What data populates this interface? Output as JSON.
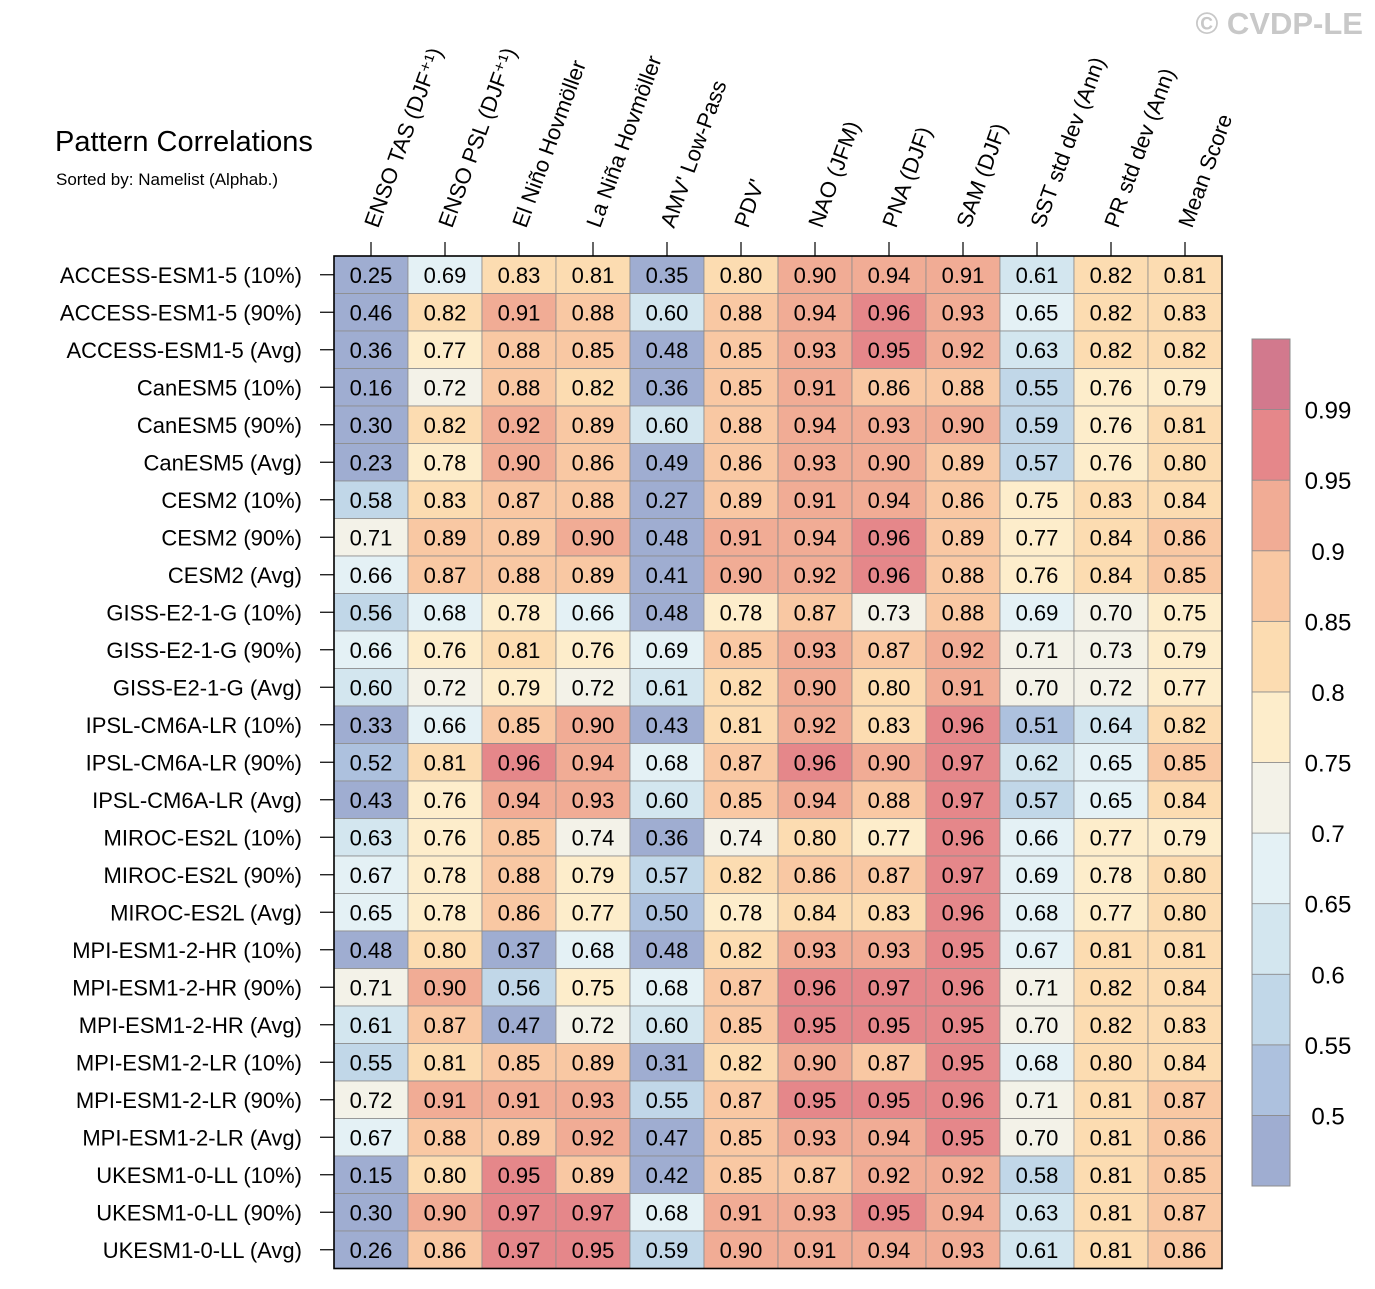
{
  "title": "Pattern Correlations",
  "subtitle": "Sorted by: Namelist (Alphab.)",
  "watermark": "© CVDP-LE",
  "chart_data": {
    "type": "heatmap",
    "columns": [
      "ENSO TAS (DJF⁺¹)",
      "ENSO PSL (DJF⁺¹)",
      "El Niño Hovmöller",
      "La Niña Hovmöller",
      "AMV' Low-Pass",
      "PDV'",
      "NAO (JFM)",
      "PNA (DJF)",
      "SAM (DJF)",
      "SST std dev (Ann)",
      "PR std dev (Ann)",
      "Mean Score"
    ],
    "rows": [
      "ACCESS-ESM1-5 (10%)",
      "ACCESS-ESM1-5 (90%)",
      "ACCESS-ESM1-5 (Avg)",
      "CanESM5 (10%)",
      "CanESM5 (90%)",
      "CanESM5 (Avg)",
      "CESM2 (10%)",
      "CESM2 (90%)",
      "CESM2 (Avg)",
      "GISS-E2-1-G (10%)",
      "GISS-E2-1-G (90%)",
      "GISS-E2-1-G (Avg)",
      "IPSL-CM6A-LR (10%)",
      "IPSL-CM6A-LR (90%)",
      "IPSL-CM6A-LR (Avg)",
      "MIROC-ES2L (10%)",
      "MIROC-ES2L (90%)",
      "MIROC-ES2L (Avg)",
      "MPI-ESM1-2-HR (10%)",
      "MPI-ESM1-2-HR (90%)",
      "MPI-ESM1-2-HR (Avg)",
      "MPI-ESM1-2-LR (10%)",
      "MPI-ESM1-2-LR (90%)",
      "MPI-ESM1-2-LR (Avg)",
      "UKESM1-0-LL (10%)",
      "UKESM1-0-LL (90%)",
      "UKESM1-0-LL (Avg)"
    ],
    "values": [
      [
        "0.25",
        "0.69",
        "0.83",
        "0.81",
        "0.35",
        "0.80",
        "0.90",
        "0.94",
        "0.91",
        "0.61",
        "0.82",
        "0.81"
      ],
      [
        "0.46",
        "0.82",
        "0.91",
        "0.88",
        "0.60",
        "0.88",
        "0.94",
        "0.96",
        "0.93",
        "0.65",
        "0.82",
        "0.83"
      ],
      [
        "0.36",
        "0.77",
        "0.88",
        "0.85",
        "0.48",
        "0.85",
        "0.93",
        "0.95",
        "0.92",
        "0.63",
        "0.82",
        "0.82"
      ],
      [
        "0.16",
        "0.72",
        "0.88",
        "0.82",
        "0.36",
        "0.85",
        "0.91",
        "0.86",
        "0.88",
        "0.55",
        "0.76",
        "0.79"
      ],
      [
        "0.30",
        "0.82",
        "0.92",
        "0.89",
        "0.60",
        "0.88",
        "0.94",
        "0.93",
        "0.90",
        "0.59",
        "0.76",
        "0.81"
      ],
      [
        "0.23",
        "0.78",
        "0.90",
        "0.86",
        "0.49",
        "0.86",
        "0.93",
        "0.90",
        "0.89",
        "0.57",
        "0.76",
        "0.80"
      ],
      [
        "0.58",
        "0.83",
        "0.87",
        "0.88",
        "0.27",
        "0.89",
        "0.91",
        "0.94",
        "0.86",
        "0.75",
        "0.83",
        "0.84"
      ],
      [
        "0.71",
        "0.89",
        "0.89",
        "0.90",
        "0.48",
        "0.91",
        "0.94",
        "0.96",
        "0.89",
        "0.77",
        "0.84",
        "0.86"
      ],
      [
        "0.66",
        "0.87",
        "0.88",
        "0.89",
        "0.41",
        "0.90",
        "0.92",
        "0.96",
        "0.88",
        "0.76",
        "0.84",
        "0.85"
      ],
      [
        "0.56",
        "0.68",
        "0.78",
        "0.66",
        "0.48",
        "0.78",
        "0.87",
        "0.73",
        "0.88",
        "0.69",
        "0.70",
        "0.75"
      ],
      [
        "0.66",
        "0.76",
        "0.81",
        "0.76",
        "0.69",
        "0.85",
        "0.93",
        "0.87",
        "0.92",
        "0.71",
        "0.73",
        "0.79"
      ],
      [
        "0.60",
        "0.72",
        "0.79",
        "0.72",
        "0.61",
        "0.82",
        "0.90",
        "0.80",
        "0.91",
        "0.70",
        "0.72",
        "0.77"
      ],
      [
        "0.33",
        "0.66",
        "0.85",
        "0.90",
        "0.43",
        "0.81",
        "0.92",
        "0.83",
        "0.96",
        "0.51",
        "0.64",
        "0.82"
      ],
      [
        "0.52",
        "0.81",
        "0.96",
        "0.94",
        "0.68",
        "0.87",
        "0.96",
        "0.90",
        "0.97",
        "0.62",
        "0.65",
        "0.85"
      ],
      [
        "0.43",
        "0.76",
        "0.94",
        "0.93",
        "0.60",
        "0.85",
        "0.94",
        "0.88",
        "0.97",
        "0.57",
        "0.65",
        "0.84"
      ],
      [
        "0.63",
        "0.76",
        "0.85",
        "0.74",
        "0.36",
        "0.74",
        "0.80",
        "0.77",
        "0.96",
        "0.66",
        "0.77",
        "0.79"
      ],
      [
        "0.67",
        "0.78",
        "0.88",
        "0.79",
        "0.57",
        "0.82",
        "0.86",
        "0.87",
        "0.97",
        "0.69",
        "0.78",
        "0.80"
      ],
      [
        "0.65",
        "0.78",
        "0.86",
        "0.77",
        "0.50",
        "0.78",
        "0.84",
        "0.83",
        "0.96",
        "0.68",
        "0.77",
        "0.80"
      ],
      [
        "0.48",
        "0.80",
        "0.37",
        "0.68",
        "0.48",
        "0.82",
        "0.93",
        "0.93",
        "0.95",
        "0.67",
        "0.81",
        "0.81"
      ],
      [
        "0.71",
        "0.90",
        "0.56",
        "0.75",
        "0.68",
        "0.87",
        "0.96",
        "0.97",
        "0.96",
        "0.71",
        "0.82",
        "0.84"
      ],
      [
        "0.61",
        "0.87",
        "0.47",
        "0.72",
        "0.60",
        "0.85",
        "0.95",
        "0.95",
        "0.95",
        "0.70",
        "0.82",
        "0.83"
      ],
      [
        "0.55",
        "0.81",
        "0.85",
        "0.89",
        "0.31",
        "0.82",
        "0.90",
        "0.87",
        "0.95",
        "0.68",
        "0.80",
        "0.84"
      ],
      [
        "0.72",
        "0.91",
        "0.91",
        "0.93",
        "0.55",
        "0.87",
        "0.95",
        "0.95",
        "0.96",
        "0.71",
        "0.81",
        "0.87"
      ],
      [
        "0.67",
        "0.88",
        "0.89",
        "0.92",
        "0.47",
        "0.85",
        "0.93",
        "0.94",
        "0.95",
        "0.70",
        "0.81",
        "0.86"
      ],
      [
        "0.15",
        "0.80",
        "0.95",
        "0.89",
        "0.42",
        "0.85",
        "0.87",
        "0.92",
        "0.92",
        "0.58",
        "0.81",
        "0.85"
      ],
      [
        "0.30",
        "0.90",
        "0.97",
        "0.97",
        "0.68",
        "0.91",
        "0.93",
        "0.95",
        "0.94",
        "0.63",
        "0.81",
        "0.87"
      ],
      [
        "0.26",
        "0.86",
        "0.97",
        "0.95",
        "0.59",
        "0.90",
        "0.91",
        "0.94",
        "0.93",
        "0.61",
        "0.81",
        "0.86"
      ]
    ],
    "colorbar": {
      "bounds": [
        0.5,
        0.55,
        0.6,
        0.65,
        0.7,
        0.75,
        0.8,
        0.85,
        0.9,
        0.95,
        0.99
      ],
      "tick_labels": [
        "0.5",
        "0.55",
        "0.6",
        "0.65",
        "0.7",
        "0.75",
        "0.8",
        "0.85",
        "0.9",
        "0.95",
        "0.99"
      ],
      "colors": [
        "#9fadd1",
        "#adc1de",
        "#c1d7e8",
        "#d3e6ef",
        "#e4f1f5",
        "#f3f2e8",
        "#fdedcb",
        "#fcdcb1",
        "#f9c8a3",
        "#f1ac95",
        "#e5878a",
        "#d2798d"
      ],
      "placement": "right"
    }
  }
}
